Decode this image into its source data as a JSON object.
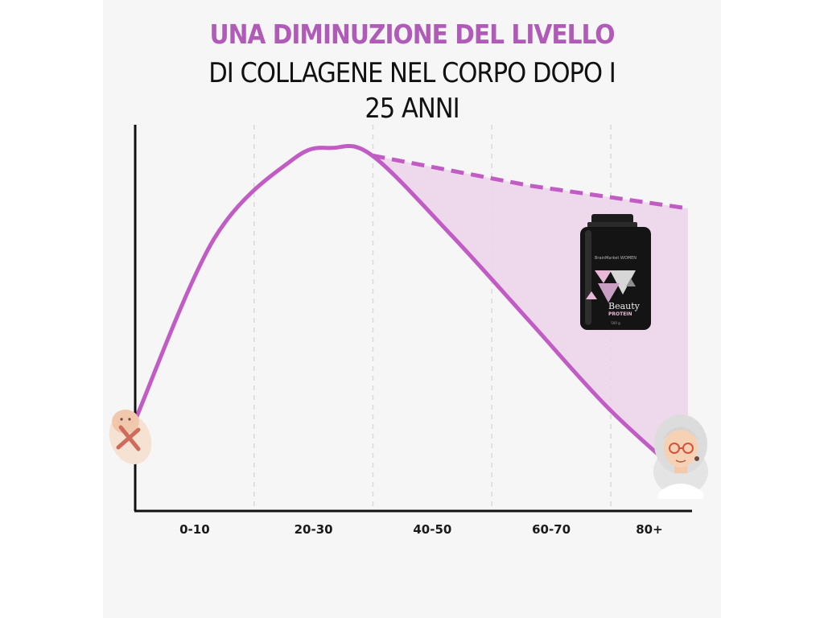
{
  "title": {
    "line1": "UNA DIMINUZIONE DEL LIVELLO",
    "line2": "DI COLLAGENE NEL CORPO DOPO I",
    "line3": "25 ANNI"
  },
  "product": {
    "brand": "BrainMarket WOMEN",
    "name": "Beauty",
    "subtitle": "PROTEIN",
    "weight": "500 g"
  },
  "colors": {
    "curve": "#c05cc4",
    "fill": "#ecd3ea",
    "axis": "#111111",
    "grid": "#d9d9d9"
  },
  "chart_data": {
    "type": "line",
    "title": "UNA DIMINUZIONE DEL LIVELLO DI COLLAGENE NEL CORPO DOPO I 25 ANNI",
    "xlabel": "",
    "ylabel": "",
    "categories": [
      "0-10",
      "20-30",
      "40-50",
      "60-70",
      "80+"
    ],
    "grid": "vertical dashed",
    "legend": "none",
    "series": [
      {
        "style": "solid",
        "points": [
          [
            0,
            24
          ],
          [
            10,
            72
          ],
          [
            20,
            93
          ],
          [
            25,
            96
          ],
          [
            30,
            94
          ],
          [
            40,
            73
          ],
          [
            50,
            50
          ],
          [
            60,
            27
          ],
          [
            70,
            8
          ]
        ]
      },
      {
        "style": "dashed",
        "points": [
          [
            30,
            94
          ],
          [
            50,
            86
          ],
          [
            70,
            80
          ]
        ]
      }
    ]
  }
}
